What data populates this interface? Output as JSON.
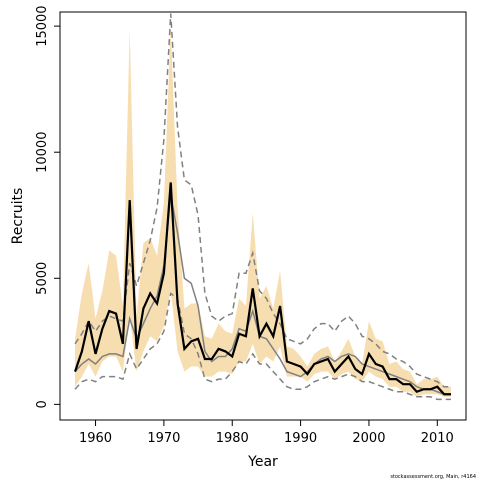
{
  "chart_data": {
    "type": "line",
    "xlabel": "Year",
    "ylabel": "Recruits",
    "footnote": "stockassessment.org, Main, r4164",
    "x": [
      1957,
      1958,
      1959,
      1960,
      1961,
      1962,
      1963,
      1964,
      1965,
      1966,
      1967,
      1968,
      1969,
      1970,
      1971,
      1972,
      1973,
      1974,
      1975,
      1976,
      1977,
      1978,
      1979,
      1980,
      1981,
      1982,
      1983,
      1984,
      1985,
      1986,
      1987,
      1988,
      1989,
      1990,
      1991,
      1992,
      1993,
      1994,
      1995,
      1996,
      1997,
      1998,
      1999,
      2000,
      2001,
      2002,
      2003,
      2004,
      2005,
      2006,
      2007,
      2008,
      2009,
      2010,
      2011,
      2012
    ],
    "xlim": [
      1954.8,
      2014.2
    ],
    "xticks": [
      1960,
      1970,
      1980,
      1990,
      2000,
      2010
    ],
    "ylim": [
      -620,
      15560
    ],
    "yticks": [
      0,
      5000,
      10000,
      15000
    ],
    "series": [
      {
        "kind": "band",
        "color": "#f7deb0",
        "upper": [
          2600,
          4400,
          5600,
          3400,
          4500,
          6100,
          5900,
          3900,
          14900,
          3500,
          6400,
          6600,
          5900,
          8000,
          15000,
          7800,
          3800,
          4000,
          4000,
          2700,
          2600,
          3200,
          2900,
          2800,
          4200,
          3900,
          7600,
          4200,
          4700,
          3800,
          5300,
          2300,
          2200,
          1900,
          1500,
          2000,
          2200,
          2300,
          1700,
          2100,
          2600,
          1900,
          1600,
          3300,
          2600,
          2500,
          1600,
          1700,
          1400,
          1300,
          800,
          1000,
          1000,
          1100,
          700,
          700
        ],
        "lower": [
          700,
          1100,
          1600,
          1100,
          1700,
          1900,
          1900,
          1300,
          3500,
          1300,
          2100,
          2700,
          2500,
          3100,
          4500,
          2100,
          1300,
          1500,
          1500,
          1100,
          1100,
          1300,
          1300,
          1200,
          1700,
          1700,
          2400,
          1600,
          1900,
          1700,
          2300,
          1100,
          1100,
          1100,
          900,
          1200,
          1300,
          1300,
          1000,
          1200,
          1300,
          1000,
          900,
          1300,
          1100,
          1000,
          700,
          700,
          500,
          500,
          300,
          400,
          400,
          400,
          300,
          300
        ]
      },
      {
        "kind": "line",
        "color": "#808080",
        "dashed": true,
        "width": 1.5,
        "values": [
          2400,
          2800,
          3300,
          2900,
          3300,
          3500,
          3400,
          3300,
          5600,
          4700,
          5600,
          6500,
          7800,
          10500,
          15500,
          11000,
          8900,
          8700,
          7500,
          4400,
          3500,
          3300,
          3500,
          3600,
          5200,
          5200,
          6000,
          4500,
          4200,
          3600,
          3200,
          2600,
          2500,
          2400,
          2600,
          3000,
          3200,
          3200,
          2900,
          3300,
          3500,
          3200,
          2700,
          2600,
          2400,
          2100,
          2000,
          1800,
          1700,
          1500,
          1200,
          1100,
          1000,
          900,
          700,
          700
        ]
      },
      {
        "kind": "line",
        "color": "#808080",
        "dashed": true,
        "width": 1.5,
        "values": [
          600,
          900,
          1000,
          900,
          1100,
          1100,
          1100,
          1000,
          2000,
          1400,
          1800,
          2200,
          2400,
          2900,
          4400,
          4200,
          2800,
          2600,
          2000,
          1000,
          900,
          1000,
          1000,
          1300,
          1700,
          1600,
          2000,
          1600,
          1600,
          1300,
          1000,
          700,
          600,
          600,
          700,
          900,
          1000,
          1100,
          1000,
          1100,
          1200,
          1100,
          900,
          900,
          800,
          700,
          600,
          500,
          500,
          400,
          300,
          300,
          300,
          200,
          200,
          200
        ]
      },
      {
        "kind": "line",
        "color": "#808080",
        "dashed": false,
        "width": 1.5,
        "values": [
          1300,
          1600,
          1800,
          1600,
          1900,
          2000,
          2000,
          1900,
          3400,
          2600,
          3200,
          3800,
          4300,
          5500,
          8300,
          6800,
          5000,
          4800,
          3900,
          2100,
          1700,
          1900,
          1900,
          2200,
          3000,
          2900,
          3700,
          2700,
          2600,
          2200,
          1800,
          1300,
          1200,
          1100,
          1300,
          1600,
          1800,
          1900,
          1700,
          1900,
          2000,
          1900,
          1600,
          1500,
          1400,
          1300,
          1200,
          1100,
          1000,
          900,
          700,
          600,
          600,
          500,
          400,
          400
        ]
      },
      {
        "kind": "line",
        "color": "#000000",
        "dashed": false,
        "width": 2.2,
        "values": [
          1300,
          2100,
          3300,
          2000,
          3000,
          3700,
          3600,
          2400,
          8100,
          2200,
          3800,
          4400,
          4000,
          5200,
          8800,
          4000,
          2200,
          2500,
          2600,
          1800,
          1800,
          2200,
          2100,
          1900,
          2800,
          2700,
          4600,
          2700,
          3200,
          2700,
          3900,
          1700,
          1600,
          1500,
          1200,
          1600,
          1700,
          1800,
          1300,
          1600,
          1900,
          1400,
          1200,
          2000,
          1600,
          1500,
          1000,
          1000,
          800,
          800,
          500,
          600,
          600,
          700,
          400,
          400
        ]
      }
    ]
  }
}
